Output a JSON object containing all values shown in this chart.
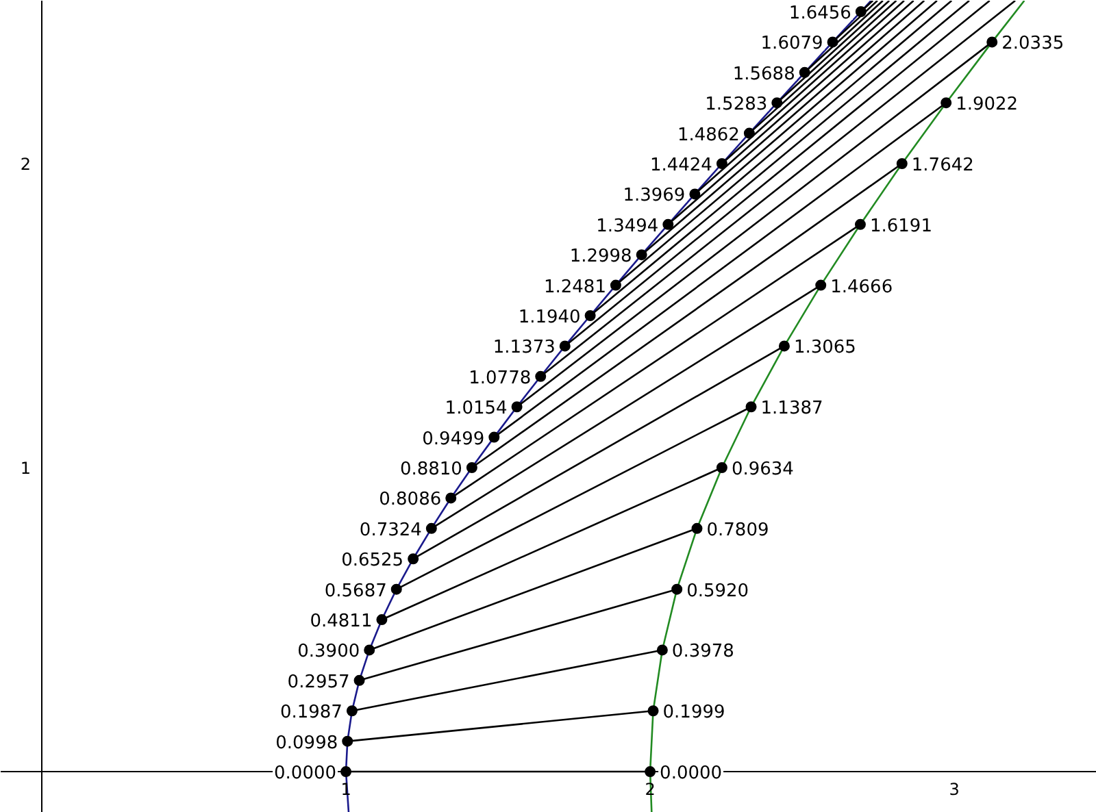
{
  "chart_data": {
    "type": "line",
    "xlim": [
      -0.135,
      3.468
    ],
    "ylim": [
      -0.135,
      2.536
    ],
    "xticks": [
      1,
      2,
      3
    ],
    "yticks": [
      1,
      2
    ],
    "series": [
      {
        "color": "#1a1a8c",
        "x": [
          1.009,
          1.0,
          1.005,
          1.02,
          1.044,
          1.077,
          1.118,
          1.166,
          1.221,
          1.281,
          1.345,
          1.414,
          1.487,
          1.562,
          1.64,
          1.72,
          1.803,
          1.887,
          1.972,
          2.059,
          2.147,
          2.236,
          2.326,
          2.417,
          2.508,
          2.6,
          2.693,
          2.726
        ],
        "values": [
          -0.135,
          0,
          0.1,
          0.2,
          0.3,
          0.4,
          0.5,
          0.6,
          0.7,
          0.8,
          0.9,
          1.0,
          1.1,
          1.2,
          1.3,
          1.4,
          1.5,
          1.6,
          1.7,
          1.8,
          1.9,
          2.0,
          2.1,
          2.2,
          2.3,
          2.4,
          2.5,
          2.536
        ]
      },
      {
        "color": "#228b22",
        "x": [
          2.005,
          2.0,
          2.01,
          2.04,
          2.088,
          2.154,
          2.236,
          2.332,
          2.441,
          2.561,
          2.691,
          2.828,
          2.973,
          3.124,
          3.23
        ],
        "values": [
          -0.135,
          0,
          0.2,
          0.4,
          0.6,
          0.8,
          1.0,
          1.2,
          1.4,
          1.6,
          1.8,
          2.0,
          2.2,
          2.4,
          2.536
        ]
      },
      {
        "color": "#000000",
        "x": [
          1.0,
          2.0
        ],
        "values": [
          0,
          0
        ]
      },
      {
        "color": "#000000",
        "x": [
          1.005,
          2.01
        ],
        "values": [
          0.1,
          0.2
        ]
      },
      {
        "color": "#000000",
        "x": [
          1.02,
          2.04
        ],
        "values": [
          0.2,
          0.4
        ]
      },
      {
        "color": "#000000",
        "x": [
          1.044,
          2.088
        ],
        "values": [
          0.3,
          0.6
        ]
      },
      {
        "color": "#000000",
        "x": [
          1.077,
          2.154
        ],
        "values": [
          0.4,
          0.8
        ]
      },
      {
        "color": "#000000",
        "x": [
          1.118,
          2.236
        ],
        "values": [
          0.5,
          1.0
        ]
      },
      {
        "color": "#000000",
        "x": [
          1.166,
          2.332
        ],
        "values": [
          0.6,
          1.2
        ]
      },
      {
        "color": "#000000",
        "x": [
          1.221,
          2.441
        ],
        "values": [
          0.7,
          1.4
        ]
      },
      {
        "color": "#000000",
        "x": [
          1.281,
          2.561
        ],
        "values": [
          0.8,
          1.6
        ]
      },
      {
        "color": "#000000",
        "x": [
          1.345,
          2.691
        ],
        "values": [
          0.9,
          1.8
        ]
      },
      {
        "color": "#000000",
        "x": [
          1.414,
          2.828
        ],
        "values": [
          1.0,
          2.0
        ]
      },
      {
        "color": "#000000",
        "x": [
          1.487,
          2.973
        ],
        "values": [
          1.1,
          2.2
        ]
      },
      {
        "color": "#000000",
        "x": [
          1.562,
          3.124
        ],
        "values": [
          1.2,
          2.4
        ]
      },
      {
        "color": "#000000",
        "x": [
          1.64,
          3.2
        ],
        "values": [
          1.3,
          2.536
        ]
      },
      {
        "color": "#000000",
        "x": [
          1.72,
          3.116
        ],
        "values": [
          1.4,
          2.536
        ]
      },
      {
        "color": "#000000",
        "x": [
          1.803,
          3.049
        ],
        "values": [
          1.5,
          2.536
        ]
      },
      {
        "color": "#000000",
        "x": [
          1.887,
          2.991
        ],
        "values": [
          1.6,
          2.536
        ]
      },
      {
        "color": "#000000",
        "x": [
          1.972,
          2.943
        ],
        "values": [
          1.7,
          2.536
        ]
      },
      {
        "color": "#000000",
        "x": [
          2.059,
          2.901
        ],
        "values": [
          1.8,
          2.536
        ]
      },
      {
        "color": "#000000",
        "x": [
          2.147,
          2.866
        ],
        "values": [
          1.9,
          2.536
        ]
      },
      {
        "color": "#000000",
        "x": [
          2.236,
          2.835
        ],
        "values": [
          2.0,
          2.536
        ]
      },
      {
        "color": "#000000",
        "x": [
          2.326,
          2.809
        ],
        "values": [
          2.1,
          2.536
        ]
      },
      {
        "color": "#000000",
        "x": [
          2.417,
          2.786
        ],
        "values": [
          2.2,
          2.536
        ]
      },
      {
        "color": "#000000",
        "x": [
          2.508,
          2.765
        ],
        "values": [
          2.3,
          2.536
        ]
      },
      {
        "color": "#000000",
        "x": [
          2.6,
          2.747
        ],
        "values": [
          2.4,
          2.536
        ]
      },
      {
        "color": "#000000",
        "x": [
          2.693,
          2.732
        ],
        "values": [
          2.5,
          2.536
        ]
      },
      {
        "type": "scatter",
        "marker": "circle",
        "color": "#000000",
        "x": [
          1.0,
          1.005,
          1.02,
          1.044,
          1.077,
          1.118,
          1.166,
          1.221,
          1.281,
          1.345,
          1.414,
          1.487,
          1.562,
          1.64,
          1.72,
          1.803,
          1.887,
          1.972,
          2.059,
          2.147,
          2.236,
          2.326,
          2.417,
          2.508,
          2.6,
          2.693
        ],
        "values": [
          0,
          0.1,
          0.2,
          0.3,
          0.4,
          0.5,
          0.6,
          0.7,
          0.8,
          0.9,
          1.0,
          1.1,
          1.2,
          1.3,
          1.4,
          1.5,
          1.6,
          1.7,
          1.8,
          1.9,
          2.0,
          2.1,
          2.2,
          2.3,
          2.4,
          2.5
        ]
      },
      {
        "type": "scatter",
        "marker": "circle",
        "color": "#000000",
        "x": [
          2.0,
          2.01,
          2.04,
          2.088,
          2.154,
          2.236,
          2.332,
          2.441,
          2.561,
          2.691,
          2.828,
          2.973,
          3.124
        ],
        "values": [
          0,
          0.2,
          0.4,
          0.6,
          0.8,
          1.0,
          1.2,
          1.4,
          1.6,
          1.8,
          2.0,
          2.2,
          2.4
        ]
      }
    ],
    "annotations": [
      {
        "text": "0.0000",
        "x": 1.0,
        "y": 0
      },
      {
        "text": "0.0998",
        "x": 1.005,
        "y": 0.1
      },
      {
        "text": "0.1987",
        "x": 1.02,
        "y": 0.2
      },
      {
        "text": "0.2957",
        "x": 1.044,
        "y": 0.3
      },
      {
        "text": "0.3900",
        "x": 1.077,
        "y": 0.4
      },
      {
        "text": "0.4811",
        "x": 1.118,
        "y": 0.5
      },
      {
        "text": "0.5687",
        "x": 1.166,
        "y": 0.6
      },
      {
        "text": "0.6525",
        "x": 1.221,
        "y": 0.7
      },
      {
        "text": "0.7324",
        "x": 1.281,
        "y": 0.8
      },
      {
        "text": "0.8086",
        "x": 1.345,
        "y": 0.9
      },
      {
        "text": "0.8810",
        "x": 1.414,
        "y": 1.0
      },
      {
        "text": "0.9499",
        "x": 1.487,
        "y": 1.1
      },
      {
        "text": "1.0154",
        "x": 1.562,
        "y": 1.2
      },
      {
        "text": "1.0778",
        "x": 1.64,
        "y": 1.3
      },
      {
        "text": "1.1373",
        "x": 1.72,
        "y": 1.4
      },
      {
        "text": "1.1940",
        "x": 1.803,
        "y": 1.5
      },
      {
        "text": "1.2481",
        "x": 1.887,
        "y": 1.6
      },
      {
        "text": "1.2998",
        "x": 1.972,
        "y": 1.7
      },
      {
        "text": "1.3494",
        "x": 2.059,
        "y": 1.8
      },
      {
        "text": "1.3969",
        "x": 2.147,
        "y": 1.9
      },
      {
        "text": "1.4424",
        "x": 2.236,
        "y": 2.0
      },
      {
        "text": "1.4862",
        "x": 2.326,
        "y": 2.1
      },
      {
        "text": "1.5283",
        "x": 2.417,
        "y": 2.2
      },
      {
        "text": "1.5688",
        "x": 2.508,
        "y": 2.3
      },
      {
        "text": "1.6079",
        "x": 2.6,
        "y": 2.4
      },
      {
        "text": "1.6456",
        "x": 2.693,
        "y": 2.5
      },
      {
        "text": "0.0000",
        "x": 2.0,
        "y": 0
      },
      {
        "text": "0.1999",
        "x": 2.01,
        "y": 0.2
      },
      {
        "text": "0.3978",
        "x": 2.04,
        "y": 0.4
      },
      {
        "text": "0.5920",
        "x": 2.088,
        "y": 0.6
      },
      {
        "text": "0.7809",
        "x": 2.154,
        "y": 0.8
      },
      {
        "text": "0.9634",
        "x": 2.236,
        "y": 1.0
      },
      {
        "text": "1.1387",
        "x": 2.332,
        "y": 1.2
      },
      {
        "text": "1.3065",
        "x": 2.441,
        "y": 1.4
      },
      {
        "text": "1.4666",
        "x": 2.561,
        "y": 1.6
      },
      {
        "text": "1.6191",
        "x": 2.691,
        "y": 1.8
      },
      {
        "text": "1.7642",
        "x": 2.828,
        "y": 2.0
      },
      {
        "text": "1.9022",
        "x": 2.973,
        "y": 2.2
      },
      {
        "text": "2.0335",
        "x": 3.124,
        "y": 2.4
      }
    ]
  }
}
